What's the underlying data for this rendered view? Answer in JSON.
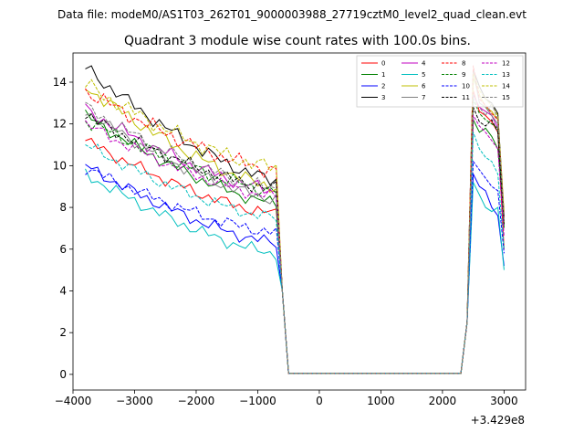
{
  "suptitle": "Data file: modeM0/AS1T03_262T01_9000003988_27719cztM0_level2_quad_clean.evt",
  "chart_data": {
    "type": "line",
    "title": "Quadrant 3 module wise count rates with 100.0s bins.",
    "xlabel": "",
    "ylabel": "",
    "x_offset_label": "+3.429e8",
    "xlim": [
      -4000,
      3350
    ],
    "ylim": [
      -0.75,
      15.4
    ],
    "x_ticks": [
      -4000,
      -3000,
      -2000,
      -1000,
      0,
      1000,
      2000,
      3000
    ],
    "x_tick_labels": [
      "−4000",
      "−3000",
      "−2000",
      "−1000",
      "0",
      "1000",
      "2000",
      "3000"
    ],
    "y_ticks": [
      0,
      2,
      4,
      6,
      8,
      10,
      12,
      14
    ],
    "y_tick_labels": [
      "0",
      "2",
      "4",
      "6",
      "8",
      "10",
      "12",
      "14"
    ],
    "legend_position": "top-right",
    "segment1_x": [
      -3800,
      -3700,
      -3600,
      -3500,
      -3400,
      -3300,
      -3200,
      -3100,
      -3000,
      -2900,
      -2800,
      -2700,
      -2600,
      -2500,
      -2400,
      -2300,
      -2200,
      -2100,
      -2000,
      -1900,
      -1800,
      -1700,
      -1600,
      -1500,
      -1400,
      -1300,
      -1200,
      -1100,
      -1000,
      -900,
      -800,
      -700
    ],
    "segment2_x": [
      2500,
      2600,
      2700,
      2800,
      2900,
      3000
    ],
    "gap_x": [
      -600,
      -500,
      2300,
      2400
    ],
    "gap_y": [
      4.0,
      0.05,
      0.05,
      2.5
    ],
    "series": [
      {
        "name": "0",
        "color": "#ff0000",
        "dash": false,
        "start": 11.2,
        "end": 7.7,
        "wiggle": 0.35,
        "seg2": [
          13.6,
          12.6,
          12.4,
          12.1,
          11.6,
          6.0
        ]
      },
      {
        "name": "1",
        "color": "#008000",
        "dash": false,
        "start": 12.4,
        "end": 8.2,
        "wiggle": 0.35,
        "seg2": [
          12.2,
          11.6,
          11.8,
          11.4,
          10.8,
          7.5
        ]
      },
      {
        "name": "2",
        "color": "#0000ff",
        "dash": false,
        "start": 10.0,
        "end": 6.3,
        "wiggle": 0.35,
        "seg2": [
          9.6,
          9.0,
          8.8,
          8.0,
          7.6,
          5.2
        ]
      },
      {
        "name": "3",
        "color": "#000000",
        "dash": false,
        "start": 14.7,
        "end": 9.3,
        "wiggle": 0.4,
        "seg2": [
          14.6,
          13.8,
          13.2,
          13.0,
          12.5,
          7.6
        ]
      },
      {
        "name": "4",
        "color": "#c000c0",
        "dash": false,
        "start": 12.7,
        "end": 8.8,
        "wiggle": 0.4,
        "seg2": [
          13.4,
          12.8,
          12.6,
          12.4,
          11.8,
          7.2
        ]
      },
      {
        "name": "5",
        "color": "#00bfbf",
        "dash": false,
        "start": 9.6,
        "end": 5.8,
        "wiggle": 0.35,
        "seg2": [
          9.2,
          8.6,
          8.0,
          7.8,
          8.0,
          5.0
        ]
      },
      {
        "name": "6",
        "color": "#bfbf00",
        "dash": false,
        "start": 13.8,
        "end": 9.0,
        "wiggle": 0.4,
        "seg2": [
          14.2,
          13.4,
          12.8,
          12.6,
          12.2,
          7.2
        ]
      },
      {
        "name": "7",
        "color": "#808080",
        "dash": false,
        "start": 12.6,
        "end": 8.4,
        "wiggle": 0.35,
        "seg2": [
          14.6,
          13.0,
          12.8,
          12.4,
          12.0,
          7.0
        ]
      },
      {
        "name": "8",
        "color": "#ff0000",
        "dash": true,
        "start": 13.6,
        "end": 9.8,
        "wiggle": 0.45,
        "seg2": [
          14.8,
          13.2,
          12.9,
          12.5,
          12.2,
          7.5
        ]
      },
      {
        "name": "9",
        "color": "#008000",
        "dash": true,
        "start": 12.2,
        "end": 8.8,
        "wiggle": 0.4,
        "seg2": [
          13.2,
          12.5,
          12.2,
          12.0,
          11.8,
          7.0
        ]
      },
      {
        "name": "10",
        "color": "#0000ff",
        "dash": true,
        "start": 9.9,
        "end": 6.8,
        "wiggle": 0.35,
        "seg2": [
          10.2,
          9.8,
          9.4,
          9.0,
          8.8,
          5.8
        ]
      },
      {
        "name": "11",
        "color": "#000000",
        "dash": true,
        "start": 12.4,
        "end": 8.9,
        "wiggle": 0.4,
        "seg2": [
          12.8,
          12.1,
          11.9,
          12.2,
          11.6,
          7.2
        ]
      },
      {
        "name": "12",
        "color": "#c000c0",
        "dash": true,
        "start": 12.0,
        "end": 8.5,
        "wiggle": 0.35,
        "seg2": [
          12.4,
          11.9,
          11.6,
          11.2,
          10.8,
          6.6
        ]
      },
      {
        "name": "13",
        "color": "#00bfbf",
        "dash": true,
        "start": 11.0,
        "end": 7.5,
        "wiggle": 0.35,
        "seg2": [
          11.6,
          10.8,
          10.4,
          10.2,
          9.6,
          6.0
        ]
      },
      {
        "name": "14",
        "color": "#bfbf00",
        "dash": true,
        "start": 13.9,
        "end": 9.9,
        "wiggle": 0.45,
        "seg2": [
          14.4,
          13.6,
          13.2,
          12.9,
          12.4,
          7.8
        ]
      },
      {
        "name": "15",
        "color": "#808080",
        "dash": true,
        "start": 12.8,
        "end": 8.9,
        "wiggle": 0.4,
        "seg2": [
          13.4,
          12.8,
          12.4,
          13.0,
          12.2,
          7.4
        ]
      }
    ]
  }
}
